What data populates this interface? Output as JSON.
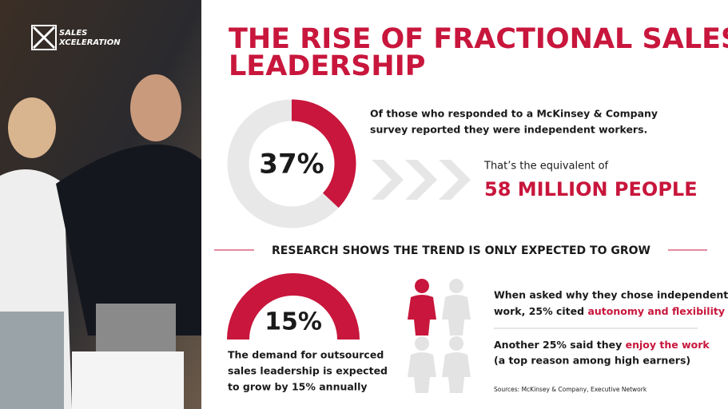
{
  "logo": {
    "line1": "SALES",
    "line2": "XCELERATION"
  },
  "header": {
    "title_line1": "THE RISE OF FRACTIONAL SALES",
    "title_line2": "LEADERSHIP"
  },
  "donut": {
    "value": 37,
    "label": "37%"
  },
  "survey": {
    "line1": "Of those who responded to a McKinsey & Company",
    "line2": "survey reported they were independent workers."
  },
  "equivalent": {
    "intro": "That’s the equivalent of",
    "highlight": "58 MILLION PEOPLE"
  },
  "divider": "RESEARCH SHOWS THE TREND IS ONLY EXPECTED TO GROW",
  "gauge": {
    "label": "15%"
  },
  "demand": {
    "line1": "The demand for outsourced",
    "line2": "sales leadership is expected",
    "line3": "to grow by 15% annually"
  },
  "stats": [
    {
      "line1": "When asked why they chose independent",
      "line2": "work, 25% cited ",
      "highlight": "autonomy and flexibility"
    },
    {
      "line1_prefix": "Another 25% said  they ",
      "highlight": "enjoy the work",
      "line2": "(a top reason among high earners)"
    }
  ],
  "sources": "Sources: McKinsey & Company, Executive Network"
}
